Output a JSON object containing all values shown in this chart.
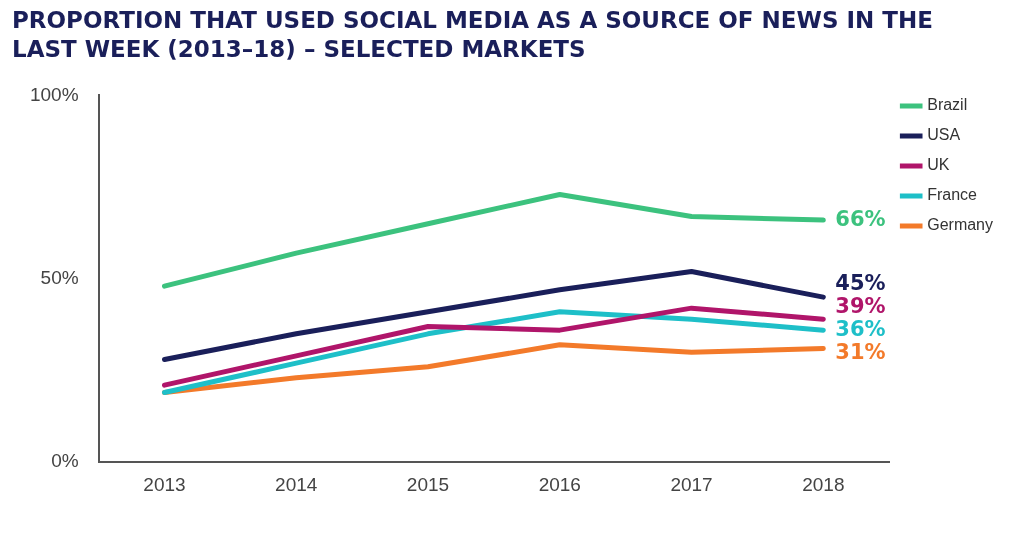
{
  "chart_data": {
    "type": "line",
    "title": "PROPORTION THAT USED SOCIAL MEDIA AS A SOURCE OF NEWS IN THE LAST WEEK (2013–18) – SELECTED MARKETS",
    "categories": [
      "2013",
      "2014",
      "2015",
      "2016",
      "2017",
      "2018"
    ],
    "series": [
      {
        "name": "Brazil",
        "color": "#3cc27e",
        "values": [
          48,
          57,
          65,
          73,
          67,
          66
        ],
        "value_labels": [
          null,
          null,
          null,
          null,
          null,
          "66%"
        ]
      },
      {
        "name": "USA",
        "color": "#1a1f5a",
        "values": [
          28,
          35,
          41,
          47,
          52,
          45
        ],
        "value_labels": [
          null,
          null,
          null,
          null,
          null,
          "45%"
        ]
      },
      {
        "name": "UK",
        "color": "#b0156a",
        "values": [
          21,
          29,
          37,
          36,
          42,
          39
        ],
        "value_labels": [
          null,
          null,
          null,
          null,
          null,
          "39%"
        ]
      },
      {
        "name": "France",
        "color": "#1ebfc8",
        "values": [
          19,
          27,
          35,
          41,
          39,
          36
        ],
        "value_labels": [
          null,
          null,
          null,
          null,
          null,
          "36%"
        ]
      },
      {
        "name": "Germany",
        "color": "#f37a2a",
        "values": [
          19,
          23,
          26,
          32,
          30,
          31
        ],
        "value_labels": [
          null,
          null,
          null,
          null,
          null,
          "31%"
        ]
      }
    ],
    "ylim": [
      0,
      100
    ],
    "yticks": [
      {
        "value": 0,
        "label": "0%"
      },
      {
        "value": 50,
        "label": "50%"
      },
      {
        "value": 100,
        "label": "100%"
      }
    ],
    "grid": false,
    "legend": "top right",
    "marker": "none",
    "line_style": "solid"
  }
}
